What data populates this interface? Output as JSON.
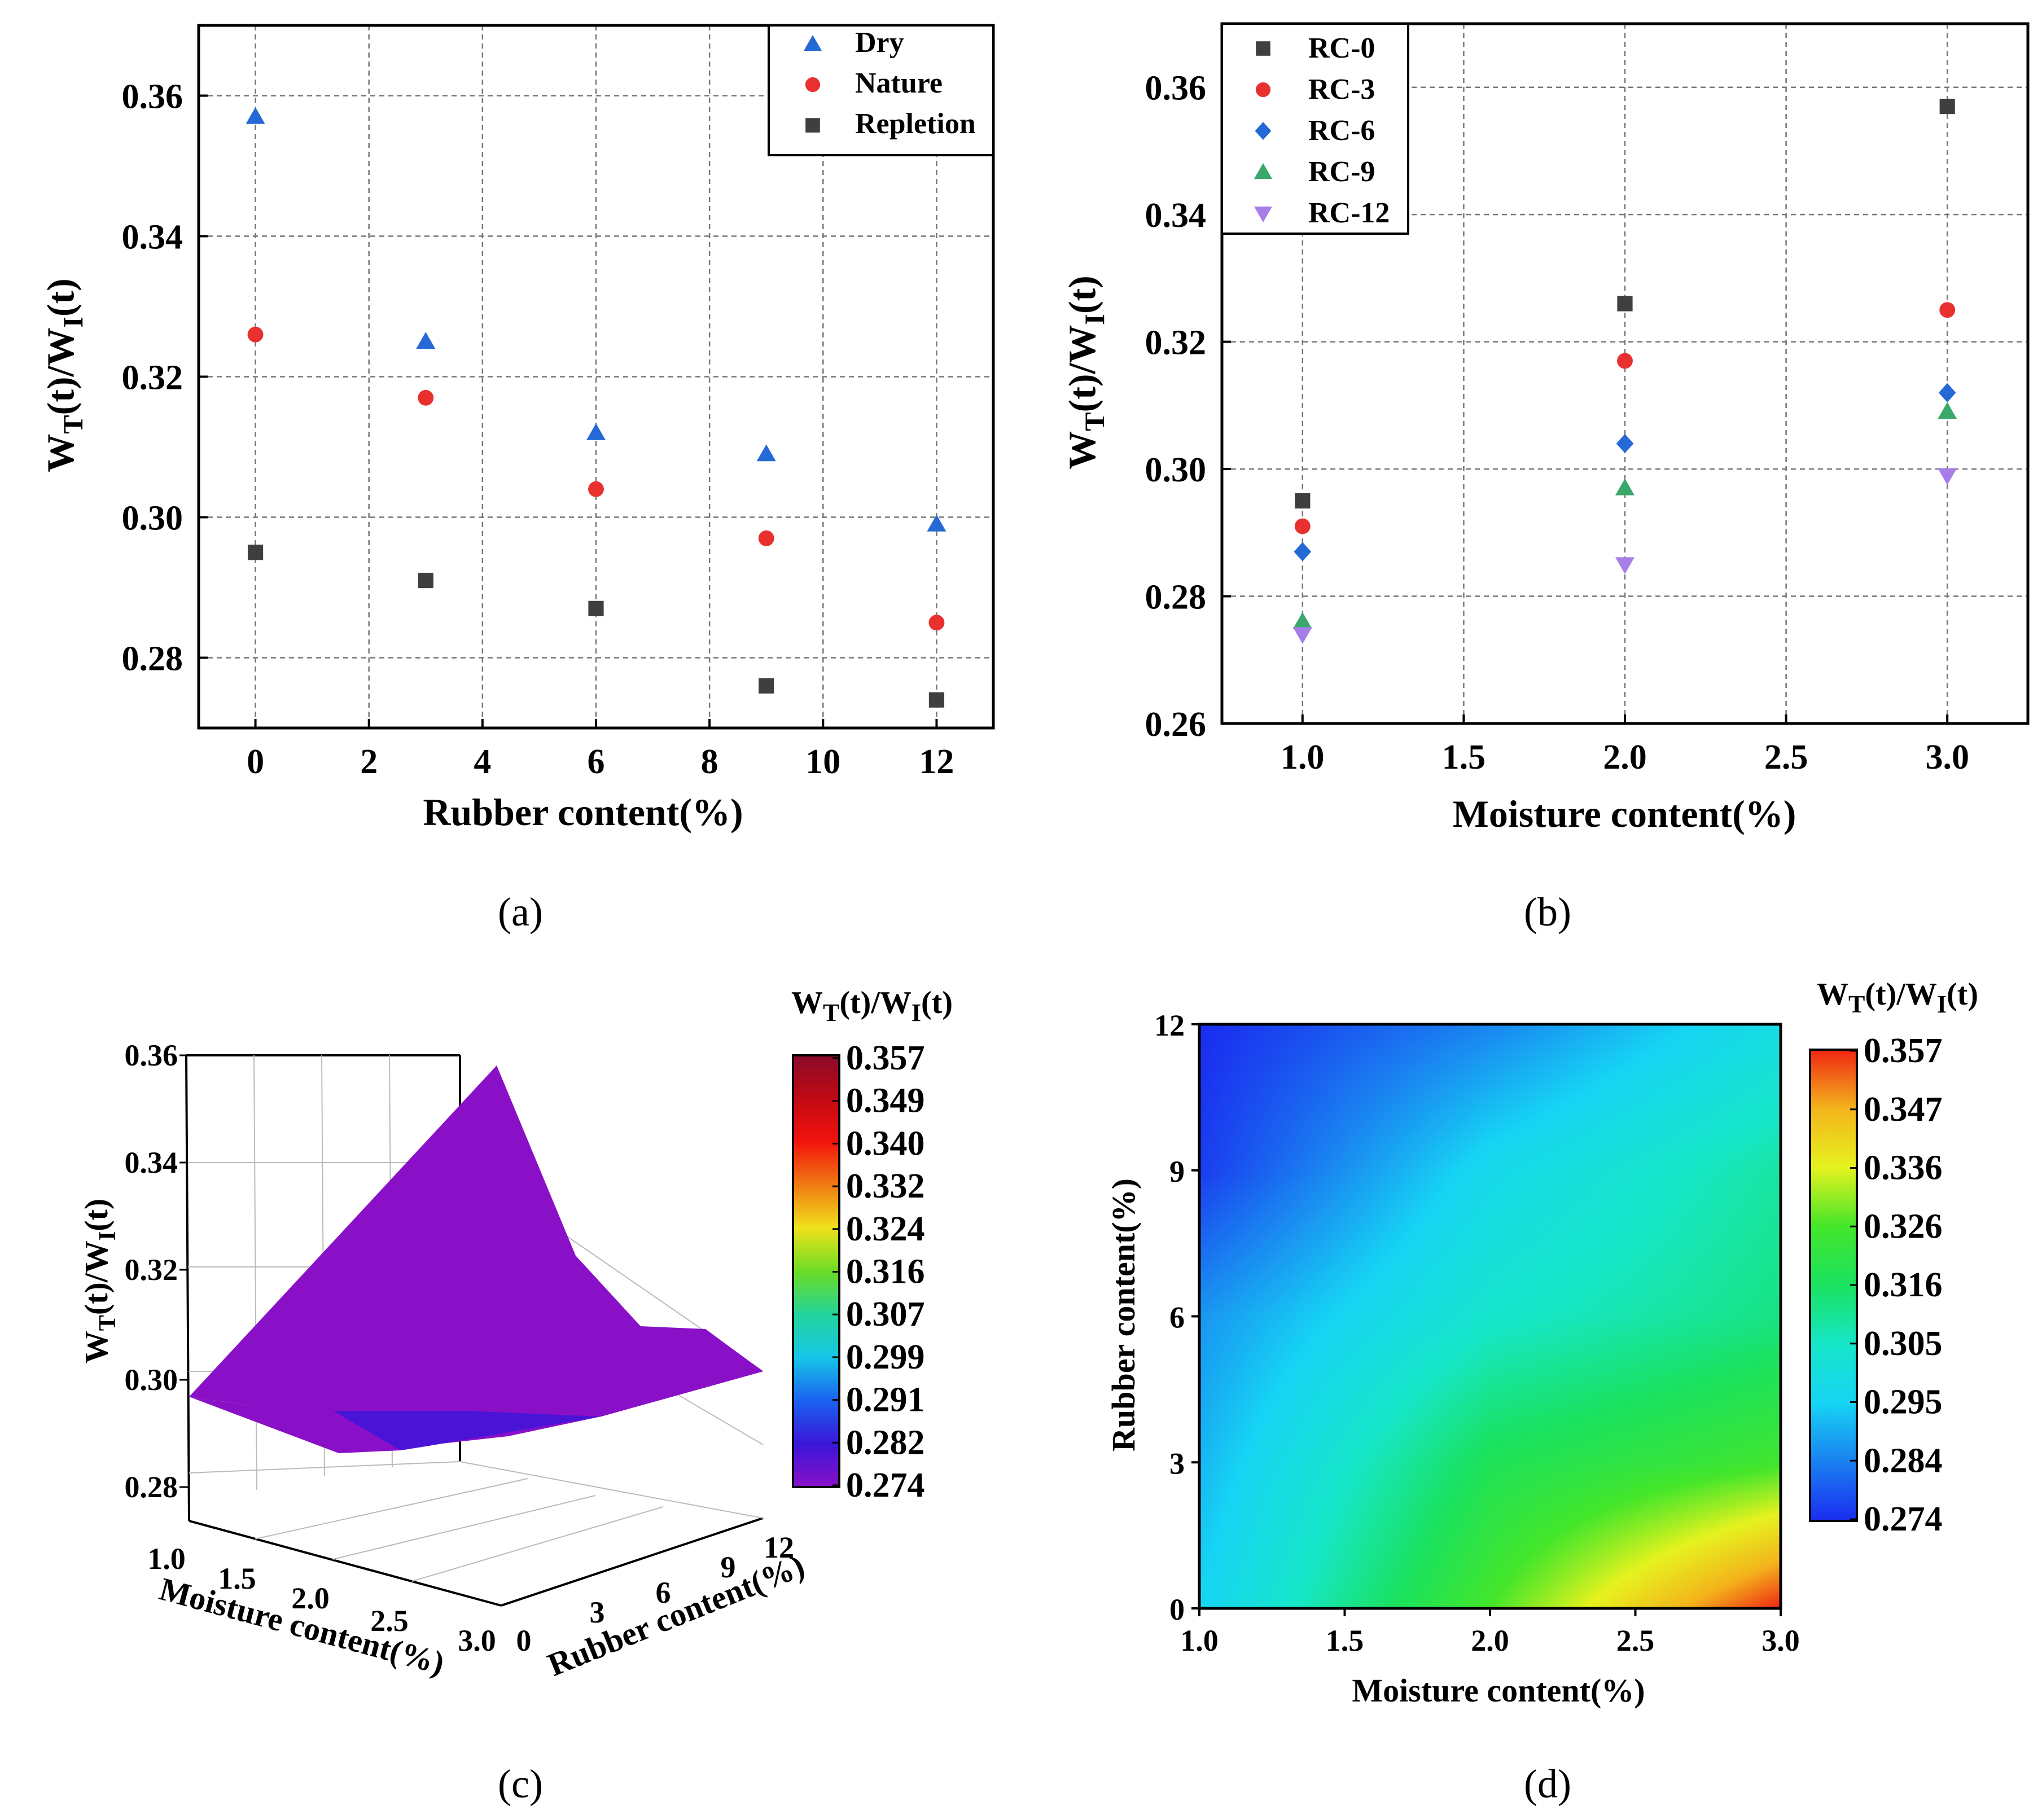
{
  "chart_data": [
    {
      "id": "a",
      "type": "scatter",
      "panel_label": "(a)",
      "xlabel": "Rubber content(%)",
      "ylabel": "W_T(t)/W_I(t)",
      "xlim": [
        -1,
        13
      ],
      "ylim": [
        0.27,
        0.37
      ],
      "xticks": [
        "0",
        "2",
        "4",
        "6",
        "8",
        "10",
        "12"
      ],
      "yticks": [
        "0.28",
        "0.30",
        "0.32",
        "0.34",
        "0.36"
      ],
      "grid": true,
      "legend_position": "top-right",
      "series": [
        {
          "name": "Dry",
          "marker": "triangle-up",
          "color": "#2569d6",
          "x": [
            0,
            3,
            6,
            9,
            12
          ],
          "y": [
            0.357,
            0.325,
            0.312,
            0.309,
            0.299
          ]
        },
        {
          "name": "Nature",
          "marker": "circle",
          "color": "#e8302e",
          "x": [
            0,
            3,
            6,
            9,
            12
          ],
          "y": [
            0.326,
            0.317,
            0.304,
            0.297,
            0.285
          ]
        },
        {
          "name": "Repletion",
          "marker": "square",
          "color": "#3f3f3f",
          "x": [
            0,
            3,
            6,
            9,
            12
          ],
          "y": [
            0.295,
            0.291,
            0.287,
            0.276,
            0.274
          ]
        }
      ]
    },
    {
      "id": "b",
      "type": "scatter",
      "panel_label": "(b)",
      "xlabel": "Moisture content(%)",
      "ylabel": "W_T(t)/W_I(t)",
      "xlim": [
        0.75,
        3.25
      ],
      "ylim": [
        0.26,
        0.37
      ],
      "xticks": [
        "1.0",
        "1.5",
        "2.0",
        "2.5",
        "3.0"
      ],
      "yticks": [
        "0.26",
        "0.28",
        "0.30",
        "0.32",
        "0.34",
        "0.36"
      ],
      "grid": true,
      "legend_position": "top-left",
      "series": [
        {
          "name": "RC-0",
          "marker": "square",
          "color": "#3f3f3f",
          "x": [
            1.0,
            2.0,
            3.0
          ],
          "y": [
            0.295,
            0.326,
            0.357
          ]
        },
        {
          "name": "RC-3",
          "marker": "circle",
          "color": "#e8302e",
          "x": [
            1.0,
            2.0,
            3.0
          ],
          "y": [
            0.291,
            0.317,
            0.325
          ]
        },
        {
          "name": "RC-6",
          "marker": "diamond",
          "color": "#2569d6",
          "x": [
            1.0,
            2.0,
            3.0
          ],
          "y": [
            0.287,
            0.304,
            0.312
          ]
        },
        {
          "name": "RC-9",
          "marker": "triangle-up",
          "color": "#3aa76b",
          "x": [
            1.0,
            2.0,
            3.0
          ],
          "y": [
            0.276,
            0.297,
            0.309
          ]
        },
        {
          "name": "RC-12",
          "marker": "triangle-down",
          "color": "#a77ee8",
          "x": [
            1.0,
            2.0,
            3.0
          ],
          "y": [
            0.274,
            0.285,
            0.299
          ]
        }
      ]
    },
    {
      "id": "c",
      "type": "surface3d",
      "panel_label": "(c)",
      "xlabel": "Moisture content(%)",
      "ylabel": "Rubber content(%)",
      "zlabel": "W_T(t)/W_I(t)",
      "xticks": [
        "1.0",
        "1.5",
        "2.0",
        "2.5",
        "3.0"
      ],
      "yticks": [
        "0",
        "3",
        "6",
        "9",
        "12"
      ],
      "zticks": [
        "0.28",
        "0.30",
        "0.32",
        "0.34",
        "0.36"
      ],
      "zlim": [
        0.27,
        0.36
      ],
      "colorbar_title": "W_T(t)/W_I(t)",
      "colorbar_ticks": [
        "0.357",
        "0.349",
        "0.340",
        "0.332",
        "0.324",
        "0.316",
        "0.307",
        "0.299",
        "0.291",
        "0.282",
        "0.274"
      ],
      "colormap": [
        "#8a0a2a",
        "#c00a14",
        "#f2130c",
        "#f07a12",
        "#efe21a",
        "#6cdc24",
        "#22d49a",
        "#16c6e8",
        "#1a62f0",
        "#3a16d8",
        "#8a10c8"
      ],
      "grid_x": [
        1.0,
        2.0,
        3.0
      ],
      "grid_y": [
        0,
        3,
        6,
        9,
        12
      ],
      "z": [
        [
          0.295,
          0.291,
          0.287,
          0.276,
          0.274
        ],
        [
          0.326,
          0.317,
          0.304,
          0.297,
          0.285
        ],
        [
          0.357,
          0.325,
          0.312,
          0.309,
          0.299
        ]
      ]
    },
    {
      "id": "d",
      "type": "heatmap",
      "panel_label": "(d)",
      "xlabel": "Moisture content(%)",
      "ylabel": "Rubber content(%)",
      "xlim": [
        1.0,
        3.0
      ],
      "ylim": [
        0,
        12
      ],
      "xticks": [
        "1.0",
        "1.5",
        "2.0",
        "2.5",
        "3.0"
      ],
      "yticks": [
        "0",
        "3",
        "6",
        "9",
        "12"
      ],
      "colorbar_title": "W_T(t)/W_I(t)",
      "colorbar_ticks": [
        "0.357",
        "0.347",
        "0.336",
        "0.326",
        "0.316",
        "0.305",
        "0.295",
        "0.284",
        "0.274"
      ],
      "colormap": [
        "#f02512",
        "#f3b41c",
        "#e6f21e",
        "#44e62a",
        "#1ae260",
        "#16e6c8",
        "#16d4f4",
        "#1a80f0",
        "#1a2cf0"
      ],
      "grid_x": [
        1.0,
        2.0,
        3.0
      ],
      "grid_y": [
        0,
        3,
        6,
        9,
        12
      ],
      "z": [
        [
          0.295,
          0.291,
          0.287,
          0.276,
          0.274
        ],
        [
          0.326,
          0.317,
          0.304,
          0.297,
          0.285
        ],
        [
          0.357,
          0.325,
          0.312,
          0.309,
          0.299
        ]
      ]
    }
  ]
}
